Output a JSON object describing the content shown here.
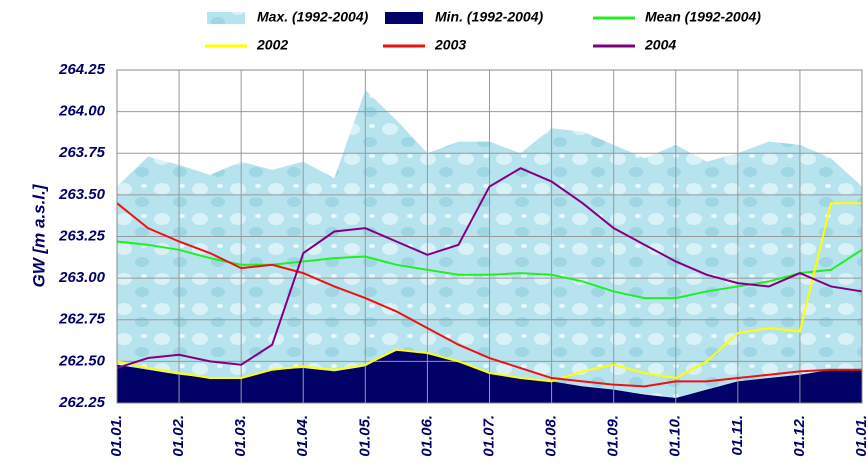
{
  "chart_data": {
    "type": "line",
    "categories": [
      "01.01.",
      null,
      "01.02.",
      null,
      "01.03.",
      null,
      "01.04.",
      null,
      "01.05.",
      null,
      "01.06.",
      null,
      "01.07.",
      null,
      "01.08.",
      null,
      "01.09.",
      null,
      "01.10.",
      null,
      "01.11.",
      null,
      "01.12.",
      null,
      "01.01."
    ],
    "y_label": "GW [m a.s.l.]",
    "ylim": [
      262.25,
      264.25
    ],
    "yticks": [
      {
        "value": 262.25,
        "label": "262.25"
      },
      {
        "value": 262.5,
        "label": "262.50"
      },
      {
        "value": 262.75,
        "label": "262.75"
      },
      {
        "value": 263,
        "label": "263.00"
      },
      {
        "value": 263.25,
        "label": "263.25"
      },
      {
        "value": 263.5,
        "label": "263.50"
      },
      {
        "value": 263.75,
        "label": "263.75"
      },
      {
        "value": 264,
        "label": "264.00"
      },
      {
        "value": 264.25,
        "label": "264.25"
      }
    ],
    "grid": true,
    "legend": "top",
    "series": [
      {
        "name": "Max. (1992-2004)",
        "type": "area",
        "color": "#b7e3ee",
        "values": [
          263.55,
          263.73,
          263.68,
          263.62,
          263.7,
          263.65,
          263.7,
          263.6,
          264.13,
          263.95,
          263.75,
          263.82,
          263.82,
          263.75,
          263.9,
          263.88,
          263.8,
          263.72,
          263.8,
          263.7,
          263.75,
          263.82,
          263.8,
          263.72,
          263.55
        ]
      },
      {
        "name": "Min. (1992-2004)",
        "type": "area",
        "color": "#000066",
        "values": [
          262.48,
          262.45,
          262.42,
          262.4,
          262.4,
          262.45,
          262.46,
          262.44,
          262.47,
          262.57,
          262.55,
          262.5,
          262.43,
          262.4,
          262.38,
          262.35,
          262.33,
          262.3,
          262.28,
          262.33,
          262.38,
          262.4,
          262.42,
          262.45,
          262.45
        ]
      },
      {
        "name": "Mean (1992-2004)",
        "color": "#22ee22",
        "values": [
          263.22,
          263.2,
          263.17,
          263.12,
          263.08,
          263.08,
          263.1,
          263.12,
          263.13,
          263.08,
          263.05,
          263.02,
          263.02,
          263.03,
          263.02,
          262.98,
          262.92,
          262.88,
          262.88,
          262.92,
          262.95,
          262.98,
          263.03,
          263.05,
          263.17
        ]
      },
      {
        "name": "2002",
        "color": "#ffff00",
        "values": [
          262.5,
          262.46,
          262.43,
          262.4,
          262.4,
          262.45,
          262.47,
          262.45,
          262.48,
          262.57,
          262.55,
          262.5,
          262.43,
          262.4,
          262.38,
          262.44,
          262.48,
          262.43,
          262.4,
          262.5,
          262.67,
          262.7,
          262.68,
          263.45,
          263.45
        ]
      },
      {
        "name": "2003",
        "color": "#ee1111",
        "values": [
          263.45,
          263.3,
          263.22,
          263.15,
          263.06,
          263.08,
          263.03,
          262.95,
          262.88,
          262.8,
          262.7,
          262.6,
          262.52,
          262.46,
          262.4,
          262.38,
          262.36,
          262.35,
          262.38,
          262.38,
          262.4,
          262.42,
          262.44,
          262.45,
          262.45
        ]
      },
      {
        "name": "2004",
        "color": "#800080",
        "values": [
          262.46,
          262.52,
          262.54,
          262.5,
          262.48,
          262.6,
          263.15,
          263.28,
          263.3,
          263.22,
          263.14,
          263.2,
          263.55,
          263.66,
          263.58,
          263.45,
          263.3,
          263.2,
          263.1,
          263.02,
          262.97,
          262.95,
          263.03,
          262.95,
          262.92
        ]
      }
    ]
  }
}
